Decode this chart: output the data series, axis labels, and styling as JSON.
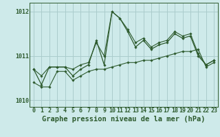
{
  "title": "Graphe pression niveau de la mer (hPa)",
  "background_color": "#ceeaea",
  "grid_color": "#aacccc",
  "line_color": "#2d5a2d",
  "x_labels": [
    "0",
    "1",
    "2",
    "3",
    "4",
    "5",
    "6",
    "7",
    "8",
    "9",
    "10",
    "11",
    "12",
    "13",
    "14",
    "15",
    "16",
    "17",
    "18",
    "19",
    "20",
    "21",
    "22",
    "23"
  ],
  "hours": [
    0,
    1,
    2,
    3,
    4,
    5,
    6,
    7,
    8,
    9,
    10,
    11,
    12,
    13,
    14,
    15,
    16,
    17,
    18,
    19,
    20,
    21,
    22,
    23
  ],
  "series_main": [
    1010.7,
    1010.35,
    1010.75,
    1010.75,
    1010.75,
    1010.55,
    1010.7,
    1010.8,
    1011.35,
    1010.8,
    1012.0,
    1011.85,
    1011.55,
    1011.2,
    1011.35,
    1011.15,
    1011.25,
    1011.3,
    1011.5,
    1011.4,
    1011.45,
    1011.0,
    1010.8,
    1010.9
  ],
  "series_min": [
    1010.4,
    1010.3,
    1010.3,
    1010.65,
    1010.65,
    1010.45,
    1010.55,
    1010.65,
    1010.7,
    1010.7,
    1010.75,
    1010.8,
    1010.85,
    1010.85,
    1010.9,
    1010.9,
    1010.95,
    1011.0,
    1011.05,
    1011.1,
    1011.1,
    1011.15,
    1010.75,
    1010.85
  ],
  "series_max": [
    1010.7,
    1010.55,
    1010.75,
    1010.75,
    1010.75,
    1010.7,
    1010.8,
    1010.85,
    1011.3,
    1011.0,
    1012.0,
    1011.85,
    1011.6,
    1011.3,
    1011.4,
    1011.2,
    1011.3,
    1011.35,
    1011.55,
    1011.45,
    1011.5,
    1011.05,
    1010.8,
    1010.9
  ],
  "ylim": [
    1009.85,
    1012.2
  ],
  "yticks": [
    1010,
    1011,
    1012
  ],
  "title_fontsize": 7.5,
  "tick_fontsize": 6
}
